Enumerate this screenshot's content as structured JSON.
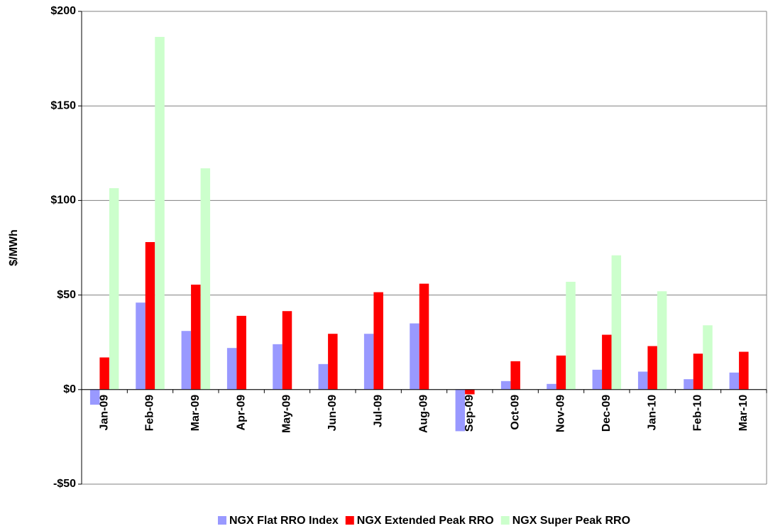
{
  "chart_data": {
    "type": "bar",
    "y_label": "$/MWh",
    "categories": [
      "Jan-09",
      "Feb-09",
      "Mar-09",
      "Apr-09",
      "May-09",
      "Jun-09",
      "Jul-09",
      "Aug-09",
      "Sep-09",
      "Oct-09",
      "Nov-09",
      "Dec-09",
      "Jan-10",
      "Feb-10",
      "Mar-10"
    ],
    "series": [
      {
        "name": "NGX Flat RRO Index",
        "color": "#9999ff",
        "values": [
          -8,
          46,
          31,
          22,
          24,
          13.5,
          29.5,
          35,
          -22,
          4.5,
          3,
          10.5,
          9.5,
          5.5,
          9
        ]
      },
      {
        "name": "NGX Extended Peak RRO",
        "color": "#ff0000",
        "values": [
          17,
          78,
          55.5,
          39,
          41.5,
          29.5,
          51.5,
          56,
          -2.5,
          15,
          18,
          29,
          23,
          19,
          20
        ]
      },
      {
        "name": "NGX Super Peak RRO",
        "color": "#ccffcc",
        "values": [
          106.5,
          186.5,
          117,
          null,
          null,
          null,
          null,
          null,
          null,
          null,
          57,
          71,
          52,
          34,
          null
        ]
      }
    ],
    "ylim": [
      -50,
      200
    ],
    "yticks": [
      {
        "value": -50,
        "label": "-$50"
      },
      {
        "value": 0,
        "label": "$0"
      },
      {
        "value": 50,
        "label": "$50"
      },
      {
        "value": 100,
        "label": "$100"
      },
      {
        "value": 150,
        "label": "$150"
      },
      {
        "value": 200,
        "label": "$200"
      }
    ],
    "grid": true,
    "legend": "bottom"
  }
}
